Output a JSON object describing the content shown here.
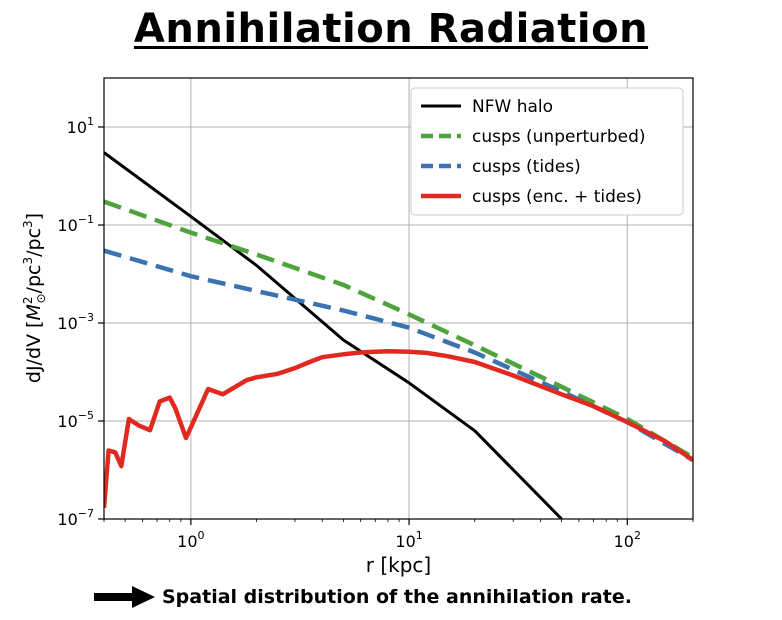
{
  "slide": {
    "title": "Annihilation Radiation",
    "caption": "Spatial distribution of the annihilation rate."
  },
  "chart_data": {
    "type": "line",
    "title": "",
    "xlabel": "r [kpc]",
    "ylabel_prefix": "dJ/dV [",
    "ylabel_suffix": "]",
    "xscale": "log",
    "yscale": "log",
    "xlim": [
      0.4,
      200
    ],
    "ylim": [
      1e-07,
      100
    ],
    "grid": true,
    "legend_position": "top-right",
    "x_ticks": [
      {
        "value": 1,
        "base": "10",
        "exp": "0"
      },
      {
        "value": 10,
        "base": "10",
        "exp": "1"
      },
      {
        "value": 100,
        "base": "10",
        "exp": "2"
      }
    ],
    "y_ticks": [
      {
        "value": 1e-07,
        "base": "10",
        "exp": "−7"
      },
      {
        "value": 1e-05,
        "base": "10",
        "exp": "−5"
      },
      {
        "value": 0.001,
        "base": "10",
        "exp": "−3"
      },
      {
        "value": 0.1,
        "base": "10",
        "exp": "−1"
      },
      {
        "value": 10,
        "base": "10",
        "exp": "1"
      }
    ],
    "series": [
      {
        "name": "NFW halo",
        "color": "#000000",
        "style": "solid",
        "x": [
          0.4,
          1.0,
          2.0,
          5.0,
          10.0,
          20.0,
          50.0
        ],
        "y": [
          3.0,
          0.15,
          0.015,
          0.00045,
          6e-05,
          6.3e-06,
          1e-07
        ]
      },
      {
        "name": "cusps (unperturbed)",
        "color": "#4fa33c",
        "style": "dashed",
        "x": [
          0.4,
          1.0,
          2.0,
          5.0,
          10.0,
          20.0,
          50.0,
          100.0,
          200.0
        ],
        "y": [
          0.3,
          0.07,
          0.025,
          0.006,
          0.0015,
          0.00035,
          5e-05,
          1.1e-05,
          1.8e-06
        ]
      },
      {
        "name": "cusps (tides)",
        "color": "#3a73b0",
        "style": "dashed",
        "x": [
          0.4,
          1.0,
          2.0,
          5.0,
          10.0,
          20.0,
          50.0,
          100.0,
          200.0
        ],
        "y": [
          0.03,
          0.009,
          0.0045,
          0.0018,
          0.0008,
          0.00025,
          4e-05,
          9.5e-06,
          1.6e-06
        ]
      },
      {
        "name": "cusps (enc. + tides)",
        "color": "#e1291f",
        "style": "solid",
        "x": [
          0.4,
          0.42,
          0.45,
          0.48,
          0.52,
          0.58,
          0.65,
          0.72,
          0.8,
          0.85,
          0.95,
          1.05,
          1.2,
          1.4,
          1.6,
          1.8,
          2.0,
          2.5,
          3.0,
          3.5,
          4.0,
          5.0,
          6.0,
          7.0,
          8.0,
          10.0,
          12.0,
          15.0,
          20.0,
          30.0,
          50.0,
          70.0,
          100.0,
          150.0,
          200.0
        ],
        "y": [
          1.7e-07,
          2.5e-06,
          2.3e-06,
          1.2e-06,
          1.1e-05,
          8e-06,
          6.5e-06,
          2.5e-05,
          3e-05,
          1.8e-05,
          4.5e-06,
          1.2e-05,
          4.5e-05,
          3.5e-05,
          5e-05,
          6.8e-05,
          7.8e-05,
          9.2e-05,
          0.00012,
          0.00016,
          0.0002,
          0.00023,
          0.00025,
          0.00026,
          0.000265,
          0.00026,
          0.000245,
          0.00021,
          0.00016,
          8.5e-05,
          3.5e-05,
          2e-05,
          9.5e-06,
          3.8e-06,
          1.6e-06
        ]
      }
    ]
  }
}
